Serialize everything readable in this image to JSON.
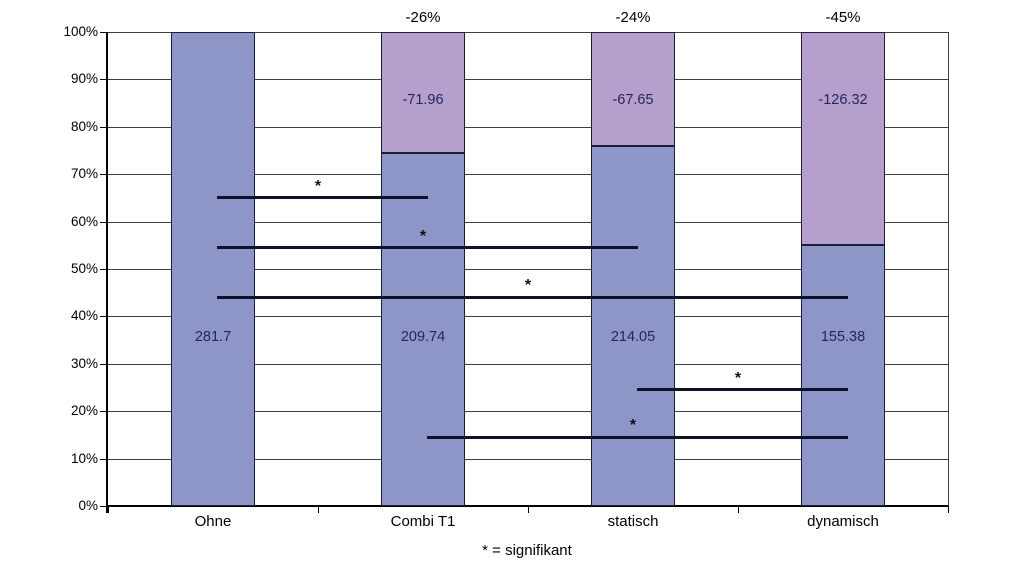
{
  "chart_data": {
    "type": "bar",
    "stacked": true,
    "title": "",
    "categories": [
      "Ohne",
      "Combi T1",
      "statisch",
      "dynamisch"
    ],
    "baseline_value": 281.7,
    "series": [
      {
        "name": "value",
        "color": "#8d96c6",
        "values": [
          281.7,
          209.74,
          214.05,
          155.38
        ],
        "labels": [
          "281.7",
          "209.74",
          "214.05",
          "155.38"
        ]
      },
      {
        "name": "reduction",
        "color": "#b5a0cd",
        "values": [
          null,
          -71.96,
          -67.65,
          -126.32
        ],
        "labels": [
          "",
          "-71.96",
          "-67.65",
          "-126.32"
        ]
      }
    ],
    "top_labels": [
      "",
      "-26%",
      "-24%",
      "-45%"
    ],
    "y_axis": {
      "tick_labels": [
        "0%",
        "10%",
        "20%",
        "30%",
        "40%",
        "50%",
        "60%",
        "70%",
        "80%",
        "90%",
        "100%"
      ],
      "ylim": [
        0,
        100
      ]
    },
    "grid": true,
    "significance_lines": [
      {
        "between": [
          "Ohne",
          "Combi T1"
        ],
        "y_pct": 65,
        "label": "*"
      },
      {
        "between": [
          "Ohne",
          "statisch"
        ],
        "y_pct": 54.5,
        "label": "*"
      },
      {
        "between": [
          "Ohne",
          "dynamisch"
        ],
        "y_pct": 44,
        "label": "*"
      },
      {
        "between": [
          "statisch",
          "dynamisch"
        ],
        "y_pct": 24.5,
        "label": "*"
      },
      {
        "between": [
          "Combi T1",
          "dynamisch"
        ],
        "y_pct": 14.5,
        "label": "*"
      }
    ],
    "footnote": "* = signifikant",
    "colors": {
      "bar_border": "#1c1c3a",
      "gridline": "#3f3f3f",
      "sig_line": "#10102a",
      "value_text": "#252560"
    }
  }
}
